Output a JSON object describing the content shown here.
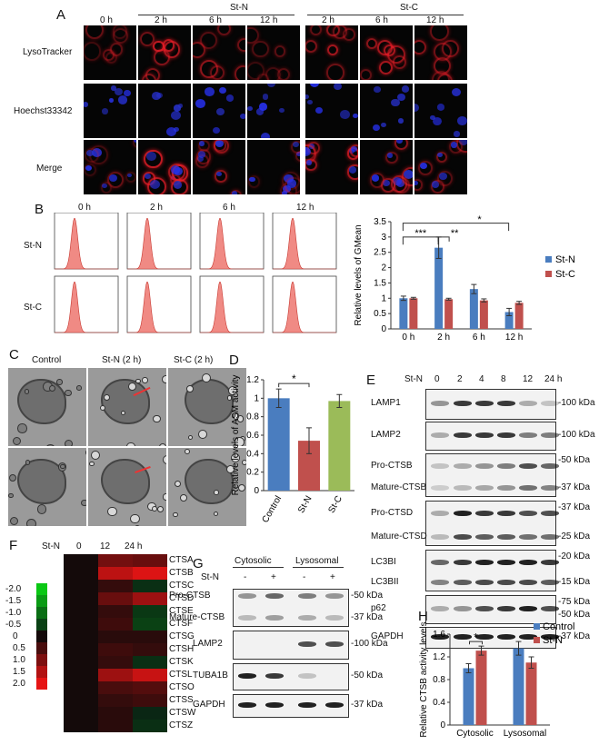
{
  "panelA": {
    "label": "A",
    "group_stn": "St-N",
    "group_stc": "St-C",
    "times": [
      "0 h",
      "2 h",
      "6 h",
      "12 h",
      "2 h",
      "6 h",
      "12 h"
    ],
    "rows": [
      "LysoTracker",
      "Hoechst33342",
      "Merge"
    ]
  },
  "panelB": {
    "label": "B",
    "times": [
      "0 h",
      "2 h",
      "6 h",
      "12 h"
    ],
    "rows": [
      "St-N",
      "St-C"
    ],
    "colors": {
      "stn": "#4a7dbf",
      "stc": "#c0504d"
    },
    "sig": [
      "***",
      "**",
      "*"
    ]
  },
  "chart_data": [
    {
      "type": "bar",
      "panel": "B",
      "categories": [
        "0 h",
        "2 h",
        "6 h",
        "12 h"
      ],
      "series": [
        {
          "name": "St-N",
          "values": [
            1.0,
            2.65,
            1.3,
            0.55
          ],
          "errors": [
            0.07,
            0.35,
            0.15,
            0.12
          ]
        },
        {
          "name": "St-C",
          "values": [
            1.0,
            0.97,
            0.93,
            0.85
          ],
          "errors": [
            0.03,
            0.03,
            0.05,
            0.05
          ]
        }
      ],
      "ylabel": "Relative levels of GMean",
      "ylim": [
        0,
        3.5
      ],
      "yticks": [
        "0",
        "0.5",
        "1",
        "1.5",
        "2",
        "2.5",
        "3",
        "3.5"
      ],
      "legend": "right"
    },
    {
      "type": "bar",
      "panel": "D",
      "categories": [
        "Control",
        "St-N",
        "St-C"
      ],
      "values": [
        1.0,
        0.54,
        0.97
      ],
      "errors": [
        0.1,
        0.14,
        0.07
      ],
      "colors": [
        "#4a7dbf",
        "#c0504d",
        "#9bbb59"
      ],
      "ylabel": "Relative levels of ASM activity",
      "ylim": [
        0,
        1.2
      ],
      "yticks": [
        "0",
        "0.2",
        "0.4",
        "0.6",
        "0.8",
        "1",
        "1.2"
      ],
      "sig": "*"
    },
    {
      "type": "heatmap",
      "panel": "F",
      "columns": [
        "0",
        "12",
        "24 h"
      ],
      "rows": [
        "CTSA",
        "CTSB",
        "CTSC",
        "CTSD",
        "CTSE",
        "CTSF",
        "CTSG",
        "CTSH",
        "CTSK",
        "CTSL",
        "CTSO",
        "CTSS",
        "CTSW",
        "CTSZ"
      ],
      "values": [
        [
          0,
          0.9,
          0.8
        ],
        [
          0,
          1.6,
          1.9
        ],
        [
          0,
          0.3,
          -0.3
        ],
        [
          0,
          0.8,
          1.3
        ],
        [
          0,
          0.3,
          -0.4
        ],
        [
          0,
          0.4,
          -0.5
        ],
        [
          0,
          0.2,
          0.2
        ],
        [
          0,
          0.4,
          0.3
        ],
        [
          0,
          0.3,
          -0.3
        ],
        [
          0,
          1.3,
          1.7
        ],
        [
          0,
          0.5,
          0.6
        ],
        [
          0,
          0.3,
          0.4
        ],
        [
          0,
          0.2,
          -0.2
        ],
        [
          0,
          0.2,
          -0.3
        ]
      ],
      "scale": [
        "-2.0",
        "-1.5",
        "-1.0",
        "-0.5",
        "0",
        "0.5",
        "1.0",
        "1.5",
        "2.0"
      ],
      "column_header": "St-N"
    },
    {
      "type": "bar",
      "panel": "H",
      "categories": [
        "Cytosolic",
        "Lysosomal"
      ],
      "series": [
        {
          "name": "Control",
          "values": [
            1.0,
            1.35
          ],
          "errors": [
            0.08,
            0.12
          ]
        },
        {
          "name": "St-N",
          "values": [
            1.31,
            1.1
          ],
          "errors": [
            0.08,
            0.1
          ]
        }
      ],
      "ylabel": "Relative CTSB activity levels",
      "ylim": [
        0,
        1.6
      ],
      "yticks": [
        "0",
        "0.4",
        "0.8",
        "1.2",
        "1.6"
      ],
      "legend": "top-right",
      "sig": "*"
    }
  ],
  "panelC": {
    "label": "C",
    "columns": [
      "Control",
      "St-N (2 h)",
      "St-C (2 h)"
    ]
  },
  "panelD": {
    "label": "D"
  },
  "panelE": {
    "label": "E",
    "header": "St-N",
    "lanes": [
      "0",
      "2",
      "4",
      "8",
      "12",
      "24 h"
    ],
    "blots": [
      {
        "names": [
          "LAMP1"
        ],
        "markers": [
          "100 kDa"
        ]
      },
      {
        "names": [
          "LAMP2"
        ],
        "markers": [
          "100 kDa"
        ]
      },
      {
        "names": [
          "Pro-CTSB",
          "Mature-CTSB"
        ],
        "markers": [
          "50 kDa",
          "37 kDa"
        ]
      },
      {
        "names": [
          "Pro-CTSD",
          "Mature-CTSD"
        ],
        "markers": [
          "37 kDa",
          "25 kDa"
        ]
      },
      {
        "names": [
          "LC3BI",
          "LC3BII"
        ],
        "markers": [
          "20 kDa",
          "15 kDa"
        ]
      },
      {
        "names": [
          "p62"
        ],
        "markers": [
          "75 kDa",
          "50 kDa"
        ]
      },
      {
        "names": [
          "GAPDH"
        ],
        "markers": [
          "37 kDa"
        ]
      }
    ]
  },
  "panelF": {
    "label": "F"
  },
  "panelG": {
    "label": "G",
    "fractions": [
      "Cytosolic",
      "Lysosomal"
    ],
    "stn_label": "St-N",
    "signs": [
      "-",
      "+",
      "-",
      "+"
    ],
    "blots": [
      {
        "names": [
          "Pro-CTSB",
          "Mature-CTSB"
        ],
        "markers": [
          "50 kDa",
          "37 kDa"
        ]
      },
      {
        "names": [
          "LAMP2"
        ],
        "markers": [
          "100 kDa"
        ]
      },
      {
        "names": [
          "TUBA1B"
        ],
        "markers": [
          "50 kDa"
        ]
      },
      {
        "names": [
          "GAPDH"
        ],
        "markers": [
          "37 kDa"
        ]
      }
    ]
  },
  "panelH": {
    "label": "H",
    "colors": {
      "control": "#4a7dbf",
      "stn": "#c0504d"
    }
  }
}
